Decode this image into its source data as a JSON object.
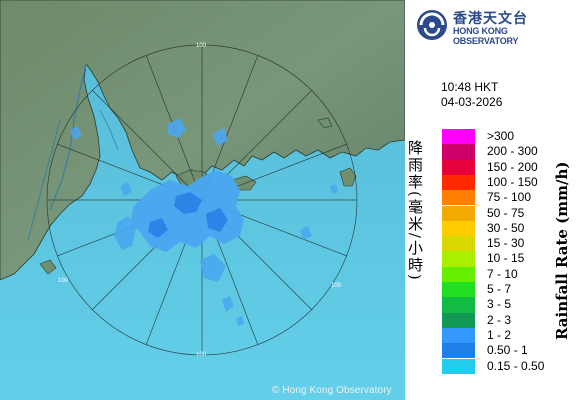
{
  "map": {
    "copyright": "© Hong Kong Observatory",
    "range_ring_labels": [
      "100",
      "100",
      "100",
      "100"
    ],
    "colors": {
      "sea": "#5ec8e8",
      "land": "#6f8f6e",
      "echo_light": "#4aa6f0",
      "echo_deep": "#2a7fe6"
    }
  },
  "header": {
    "logo_cn": "香港天文台",
    "logo_en": "HONG KONG OBSERVATORY",
    "logo_icon": "hko-logo-icon"
  },
  "timestamp": {
    "time": "10:48 HKT",
    "date": "04-03-2026"
  },
  "legend": {
    "title_cn": "降雨率(毫米/小時)",
    "title_en": "Rainfall Rate (mm/h)",
    "items": [
      {
        "label": ">300",
        "color": "#ff00ff"
      },
      {
        "label": "200 - 300",
        "color": "#cc0066"
      },
      {
        "label": "150 - 200",
        "color": "#e6003c"
      },
      {
        "label": "100 - 150",
        "color": "#ff2a00"
      },
      {
        "label": "75 - 100",
        "color": "#ff8000"
      },
      {
        "label": "50 - 75",
        "color": "#f2a900"
      },
      {
        "label": "30 - 50",
        "color": "#ffcc00"
      },
      {
        "label": "15 - 30",
        "color": "#d8d800"
      },
      {
        "label": "10 - 15",
        "color": "#aaee00"
      },
      {
        "label": "7 - 10",
        "color": "#66ee00"
      },
      {
        "label": "5 - 7",
        "color": "#22dd22"
      },
      {
        "label": "3 - 5",
        "color": "#11bb44"
      },
      {
        "label": "2 - 3",
        "color": "#119955"
      },
      {
        "label": "1 - 2",
        "color": "#3399ff"
      },
      {
        "label": "0.50 - 1",
        "color": "#1f7fe8"
      },
      {
        "label": "0.15 - 0.50",
        "color": "#22ccee"
      }
    ]
  }
}
